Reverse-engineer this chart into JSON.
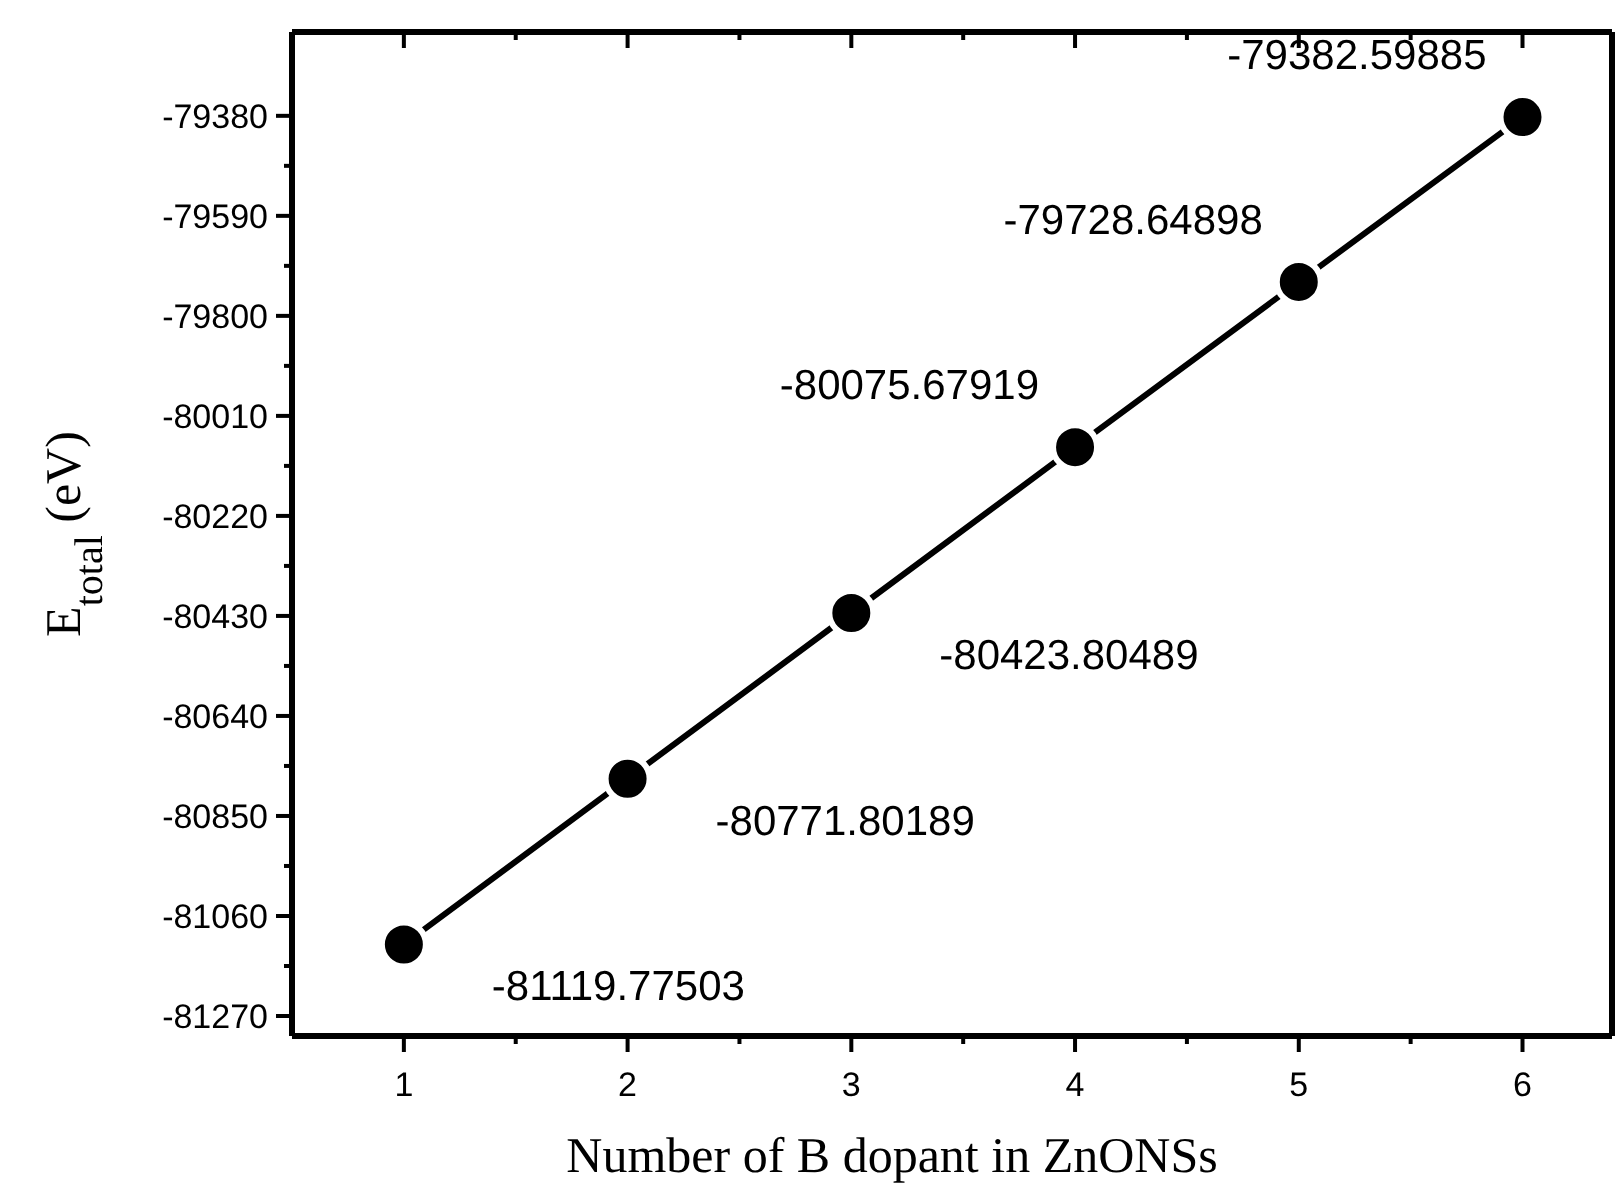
{
  "chart_data": {
    "type": "line",
    "xlabel": "Number of B dopant in ZnONSs",
    "ylabel": "E$_{total}$ (eV)",
    "x": [
      1,
      2,
      3,
      4,
      5,
      6
    ],
    "series": [
      {
        "color": "#000000",
        "values": [
          -81119.77503,
          -80771.80189,
          -80423.80489,
          -80075.67919,
          -79728.64898,
          -79382.59885
        ]
      }
    ],
    "xlim": [
      0.5,
      6.4
    ],
    "xticks": [
      1,
      2,
      3,
      4,
      5,
      6
    ],
    "ylim": [
      -81312,
      -79204
    ],
    "yticks": [
      -81270,
      -81060,
      -80850,
      -80640,
      -80430,
      -80220,
      -80010,
      -79800,
      -79590,
      -79380
    ],
    "marker": "circle",
    "line_style": "solid",
    "data_labels": true,
    "grid": false
  }
}
